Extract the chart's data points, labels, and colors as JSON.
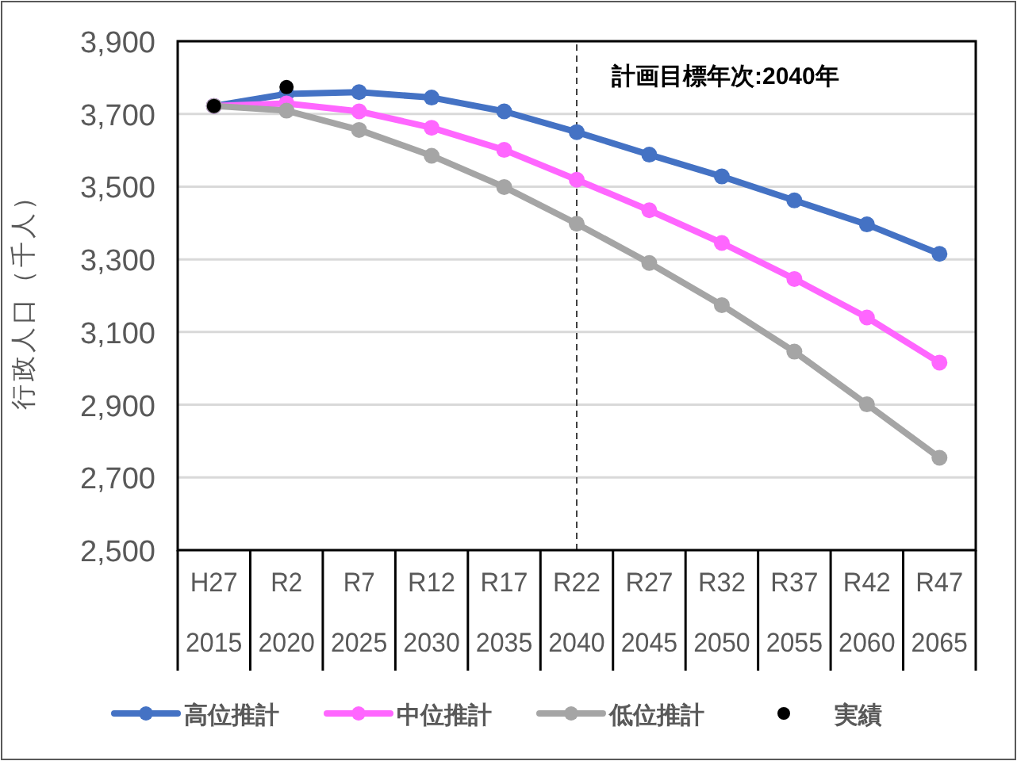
{
  "chart_data": {
    "type": "line",
    "ylabel": "行政人口（千人）",
    "categories": [
      "H27\n2015",
      "R2\n2020",
      "R7\n2025",
      "R12\n2030",
      "R17\n2035",
      "R22\n2040",
      "R27\n2045",
      "R32\n2050",
      "R37\n2055",
      "R42\n2060",
      "R47\n2065"
    ],
    "series": [
      {
        "name": "高位推計",
        "color": "#4472c4",
        "values": [
          3722,
          3755,
          3760,
          3745,
          3707,
          3650,
          3588,
          3528,
          3462,
          3396,
          3315
        ]
      },
      {
        "name": "中位推計",
        "color": "#ff66ff",
        "values": [
          3722,
          3729,
          3707,
          3662,
          3601,
          3519,
          3435,
          3345,
          3246,
          3140,
          3016
        ]
      },
      {
        "name": "低位推計",
        "color": "#a5a5a5",
        "values": [
          3722,
          3709,
          3656,
          3585,
          3499,
          3398,
          3290,
          3174,
          3046,
          2901,
          2754
        ]
      },
      {
        "name": "実績",
        "type": "scatter",
        "color": "#000000",
        "values": [
          3722,
          3774,
          null,
          null,
          null,
          null,
          null,
          null,
          null,
          null,
          null
        ]
      }
    ],
    "ylim": [
      2500,
      3900
    ],
    "yticks": [
      {
        "value": 2500,
        "label": "2,500"
      },
      {
        "value": 2700,
        "label": "2,700"
      },
      {
        "value": 2900,
        "label": "2,900"
      },
      {
        "value": 3100,
        "label": "3,100"
      },
      {
        "value": 3300,
        "label": "3,300"
      },
      {
        "value": 3500,
        "label": "3,500"
      },
      {
        "value": 3700,
        "label": "3,700"
      },
      {
        "value": 3900,
        "label": "3,900"
      }
    ],
    "grid": "y",
    "legend": "bottom",
    "marker": "circle",
    "line_style": "solid",
    "ref_lines": [
      {
        "axis": "x",
        "value": "R22\n2040",
        "label": "計画目標年次:2040年",
        "color": "#404040",
        "line_style": "dashed"
      }
    ]
  }
}
